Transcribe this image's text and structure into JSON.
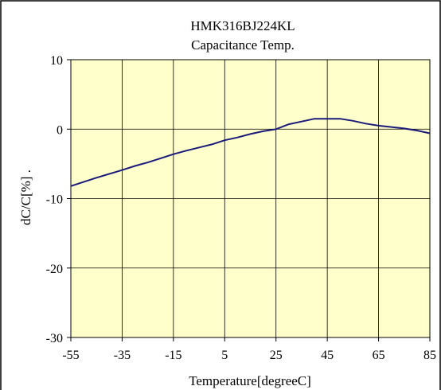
{
  "chart_data": {
    "type": "line",
    "title": "HMK316BJ224KL",
    "subtitle": "Capacitance Temp.",
    "xlabel": "Temperature[degreeC]",
    "ylabel": "dC/C[%]  .",
    "xlim": [
      -55,
      85
    ],
    "ylim": [
      -30,
      10
    ],
    "xticks": [
      "-55",
      "-35",
      "-15",
      "5",
      "25",
      "45",
      "65",
      "85"
    ],
    "yticks": [
      "10",
      "0",
      "-10",
      "-20",
      "-30"
    ],
    "grid": true,
    "series": [
      {
        "x": [
          -55,
          -45,
          -35,
          -30,
          -25,
          -20,
          -15,
          -10,
          0,
          5,
          10,
          15,
          20,
          25,
          30,
          35,
          40,
          45,
          50,
          55,
          60,
          65,
          70,
          75,
          80,
          85
        ],
        "y": [
          -8.2,
          -7,
          -5.9,
          -5.3,
          -4.8,
          -4.2,
          -3.6,
          -3.1,
          -2.2,
          -1.6,
          -1.2,
          -0.7,
          -0.3,
          0,
          0.7,
          1.1,
          1.5,
          1.5,
          1.5,
          1.2,
          0.8,
          0.5,
          0.3,
          0.1,
          -0.2,
          -0.6
        ]
      }
    ],
    "colors": {
      "plot_background": "#ffffcc",
      "series_line": "#1a1a7a",
      "grid": "#000000"
    }
  }
}
